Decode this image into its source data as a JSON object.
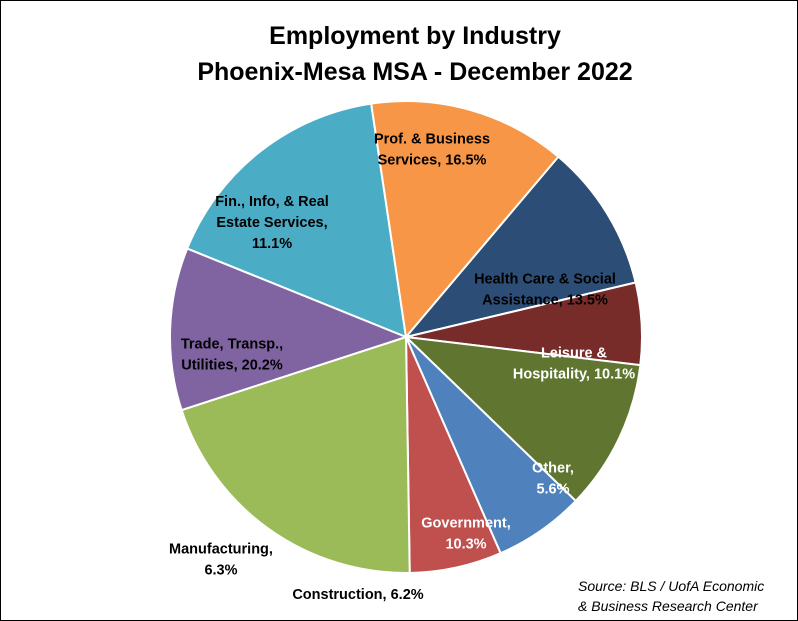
{
  "chart_data": {
    "type": "pie",
    "title": [
      "Employment by Industry",
      "Phoenix-Mesa MSA - December 2022"
    ],
    "source": [
      "Source: BLS / UofA Economic",
      "& Business Research Center"
    ],
    "slices": [
      {
        "label": [
          "Prof. & Business",
          "Services, 16.5%"
        ],
        "value": 16.5,
        "color": "#4BACC6",
        "label_color": "#000000"
      },
      {
        "label": [
          "Health Care & Social",
          "Assistance, 13.5%"
        ],
        "value": 13.5,
        "color": "#F79646",
        "label_color": "#000000"
      },
      {
        "label": [
          "Leisure &",
          "Hospitality, 10.1%"
        ],
        "value": 10.1,
        "color": "#2C4D75",
        "label_color": "#FFFFFF"
      },
      {
        "label": [
          "Other,",
          "5.6%"
        ],
        "value": 5.6,
        "color": "#772C2A",
        "label_color": "#FFFFFF"
      },
      {
        "label": [
          "Government,",
          "10.3%"
        ],
        "value": 10.3,
        "color": "#5F7530",
        "label_color": "#FFFFFF"
      },
      {
        "label": [
          "Construction, 6.2%"
        ],
        "value": 6.2,
        "color": "#4F81BD",
        "label_color": "#000000"
      },
      {
        "label": [
          "Manufacturing,",
          "6.3%"
        ],
        "value": 6.3,
        "color": "#C0504D",
        "label_color": "#000000"
      },
      {
        "label": [
          "Trade, Transp.,",
          "Utilities, 20.2%"
        ],
        "value": 20.2,
        "color": "#9BBB59",
        "label_color": "#000000"
      },
      {
        "label": [
          "Fin., Info, & Real",
          "Estate Services,",
          "11.1%"
        ],
        "value": 11.1,
        "color": "#8064A2",
        "label_color": "#000000"
      }
    ]
  }
}
